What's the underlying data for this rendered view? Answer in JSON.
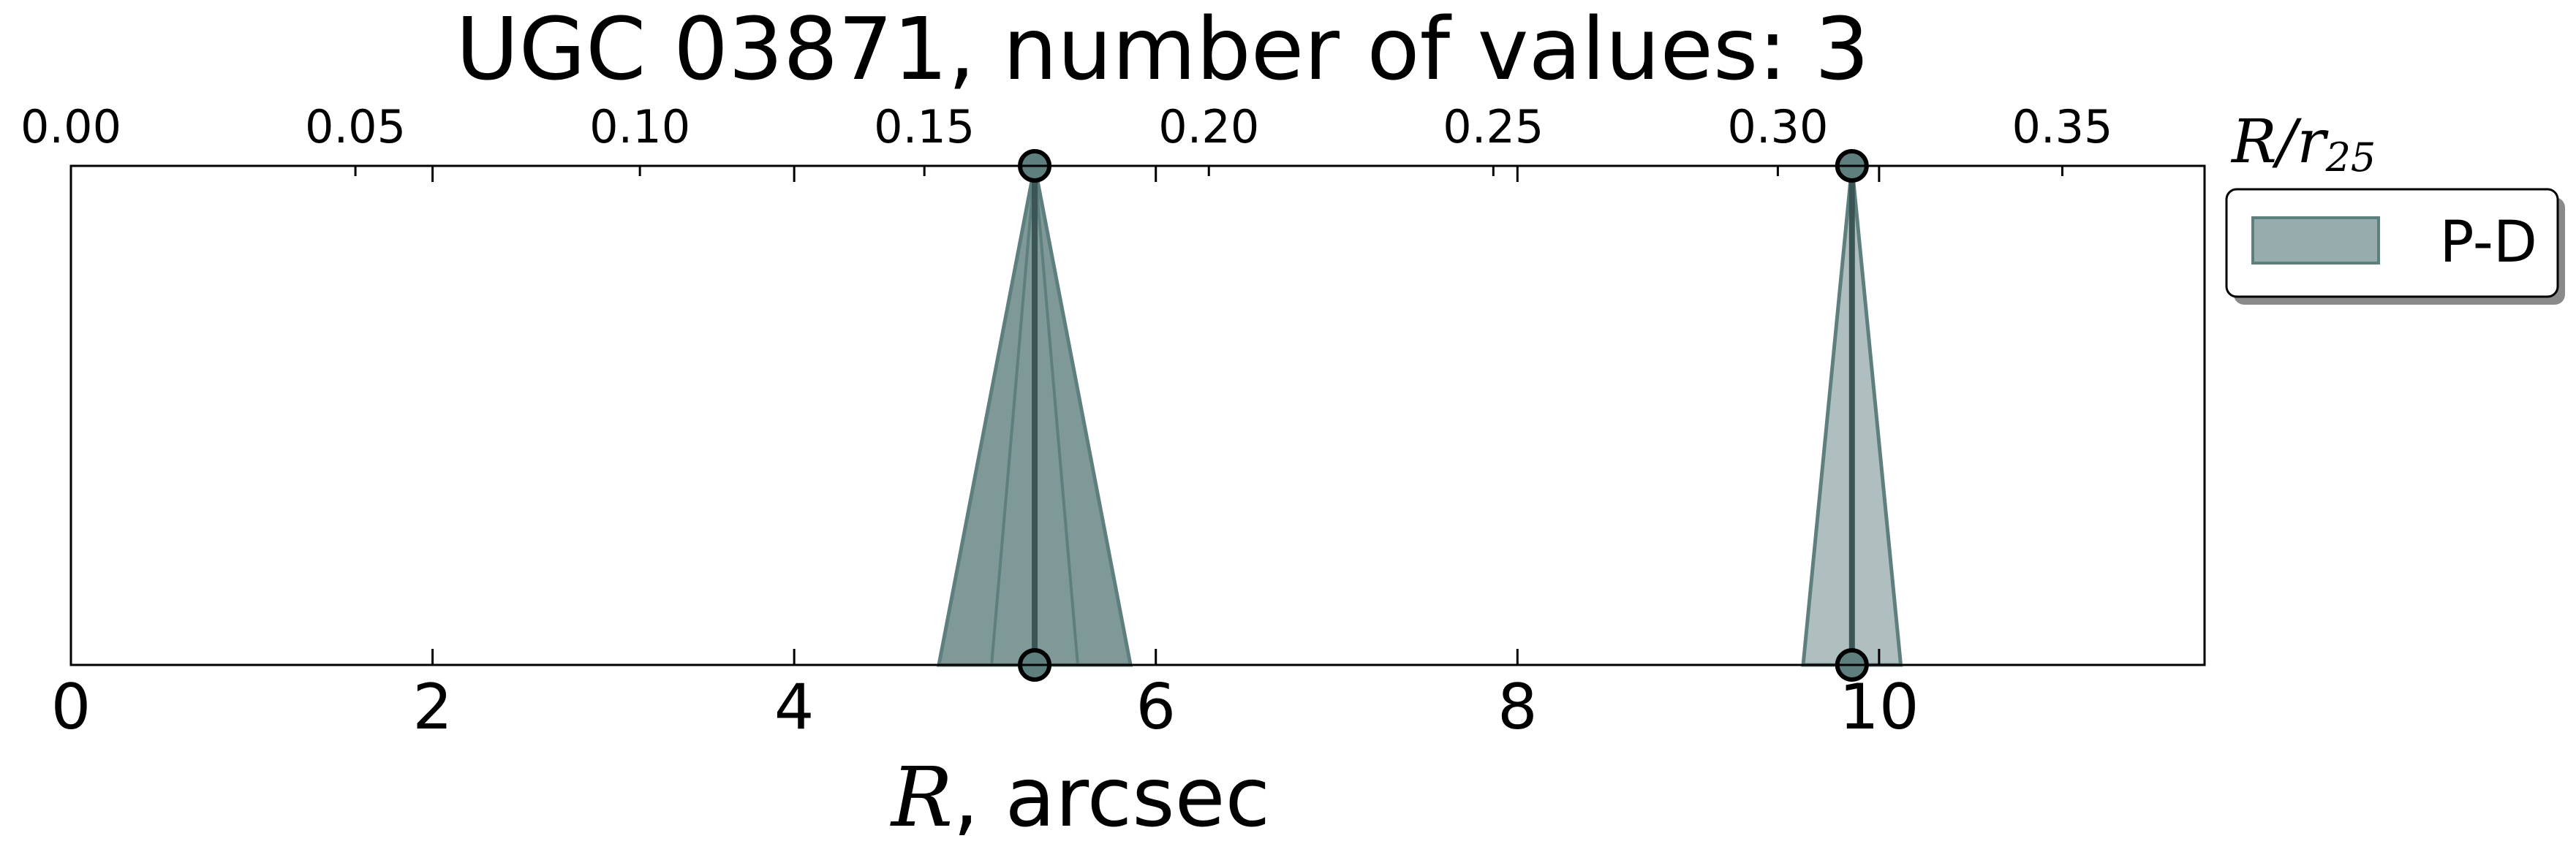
{
  "chart_data": {
    "type": "area",
    "title": "UGC 03871, number of values: 3",
    "xlabel": {
      "symbol": "R",
      "rest": ", arcsec"
    },
    "top_axis_label": {
      "symbol": "R/r",
      "subscript": "25"
    },
    "xlim": [
      0,
      11.8
    ],
    "top_xlim": [
      0,
      0.375
    ],
    "bottom_ticks": [
      {
        "value": 0,
        "label": "0"
      },
      {
        "value": 2,
        "label": "2"
      },
      {
        "value": 4,
        "label": "4"
      },
      {
        "value": 6,
        "label": "6"
      },
      {
        "value": 8,
        "label": "8"
      },
      {
        "value": 10,
        "label": "10"
      }
    ],
    "top_ticks": [
      {
        "value": 0.0,
        "label": "0.00"
      },
      {
        "value": 0.05,
        "label": "0.05"
      },
      {
        "value": 0.1,
        "label": "0.10"
      },
      {
        "value": 0.15,
        "label": "0.15"
      },
      {
        "value": 0.2,
        "label": "0.20"
      },
      {
        "value": 0.25,
        "label": "0.25"
      },
      {
        "value": 0.3,
        "label": "0.30"
      },
      {
        "value": 0.35,
        "label": "0.35"
      }
    ],
    "grid": false,
    "legend": {
      "position": "outside-right-top",
      "entries": [
        "P-D"
      ]
    },
    "series": [
      {
        "name": "P-D",
        "color": "#5f7f7f",
        "values": [
          {
            "center": 5.33,
            "half_width": 0.53,
            "count": 2
          },
          {
            "center": 9.85,
            "half_width": 0.27,
            "count": 1
          }
        ]
      }
    ]
  }
}
